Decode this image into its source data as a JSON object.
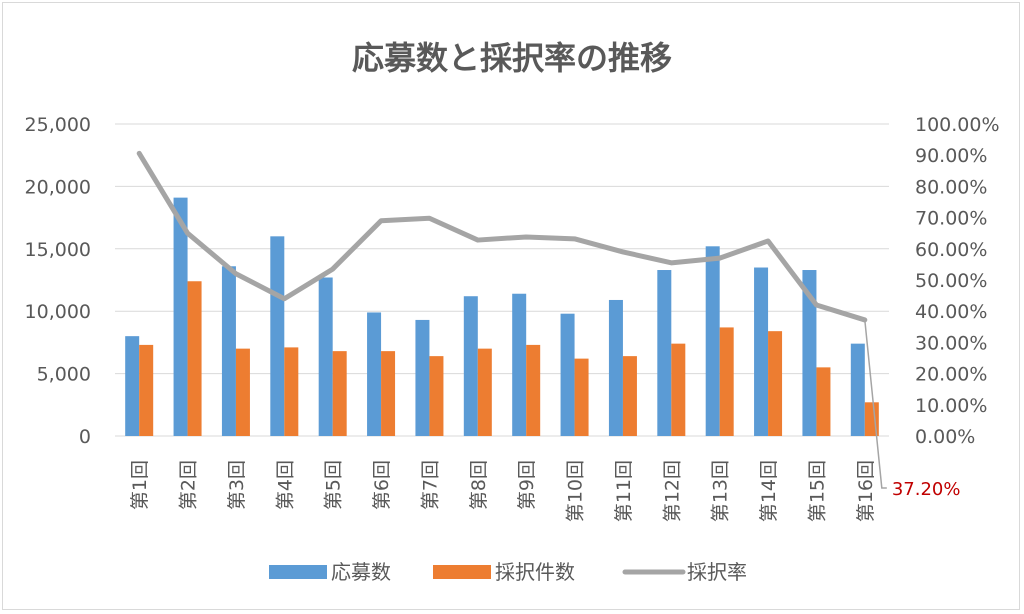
{
  "chart_data": {
    "type": "bar",
    "title": "応募数と採択率の推移",
    "categories": [
      "第1回",
      "第2回",
      "第3回",
      "第4回",
      "第5回",
      "第6回",
      "第7回",
      "第8回",
      "第9回",
      "第10回",
      "第11回",
      "第12回",
      "第13回",
      "第14回",
      "第15回",
      "第16回"
    ],
    "series": [
      {
        "name": "応募数",
        "type": "bar",
        "axis": "left",
        "color": "#5b9bd5",
        "values": [
          8000,
          19100,
          13600,
          16000,
          12700,
          9900,
          9300,
          11200,
          11400,
          9800,
          10900,
          13300,
          15200,
          13500,
          13300,
          7400
        ]
      },
      {
        "name": "採択件数",
        "type": "bar",
        "axis": "right-scaled",
        "color": "#ed7d31",
        "values": [
          7300,
          12400,
          7000,
          7100,
          6800,
          6800,
          6400,
          7000,
          7300,
          6200,
          6400,
          7400,
          8700,
          8400,
          5500,
          2700
        ]
      },
      {
        "name": "採択率",
        "type": "line",
        "axis": "right",
        "color": "#a5a5a5",
        "values": [
          90.6,
          65.0,
          52.0,
          44.0,
          53.5,
          69.0,
          69.8,
          62.8,
          63.8,
          63.2,
          59.0,
          55.5,
          57.0,
          62.5,
          42.0,
          37.2
        ]
      }
    ],
    "y_left": {
      "min": 0,
      "max": 25000,
      "step": 5000,
      "tick_labels": [
        "0",
        "5,000",
        "10,000",
        "15,000",
        "20,000",
        "25,000"
      ]
    },
    "y_right": {
      "min": 0,
      "max": 100,
      "step": 10,
      "tick_labels": [
        "0.00%",
        "10.00%",
        "20.00%",
        "30.00%",
        "40.00%",
        "50.00%",
        "60.00%",
        "70.00%",
        "80.00%",
        "90.00%",
        "100.00%"
      ]
    },
    "gridlines": true,
    "legend_position": "bottom",
    "annotation": {
      "text": "37.20%",
      "color": "#c00000",
      "target": "第16回"
    }
  }
}
